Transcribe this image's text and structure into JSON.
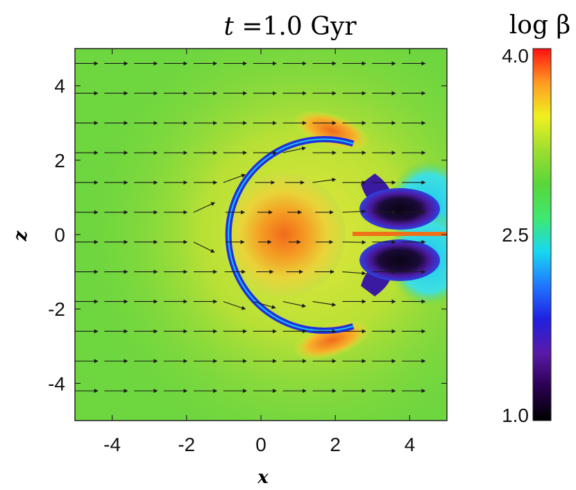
{
  "chart_data": {
    "type": "heatmap",
    "title_var": "t",
    "title_rest": " =1.0 Gyr",
    "xlabel": "x",
    "ylabel": "z",
    "xlim": [
      -5,
      5
    ],
    "ylim": [
      -5,
      5
    ],
    "xticks": [
      -4,
      -2,
      0,
      2,
      4
    ],
    "xtick_labels": [
      "-4",
      "-2",
      "0",
      "2",
      "4"
    ],
    "yticks": [
      4,
      2,
      0,
      -2,
      -4
    ],
    "ytick_labels": [
      "4",
      "2",
      "0",
      "-2",
      "-4"
    ],
    "colorbar": {
      "label": "log β",
      "min": 1.0,
      "max": 4.0,
      "ticks": [
        4.0,
        2.5,
        1.0
      ],
      "tick_labels": [
        "4.0",
        "2.5",
        "1.0"
      ],
      "colormap": [
        "#000000",
        "#2a0050",
        "#5a1aa8",
        "#2020e0",
        "#1f78ff",
        "#18d8f0",
        "#3fe870",
        "#59d63a",
        "#9ede30",
        "#f0f020",
        "#ff9a22",
        "#ff1010"
      ]
    },
    "features": {
      "background_log_beta": 2.7,
      "background_color": "#6ed63f",
      "bubble_center": [
        0.6,
        0.0
      ],
      "bubble_radius": 1.65,
      "bubble_core_color": "#f48a1e",
      "shell_color": "#2230dc",
      "wake_vortices": [
        [
          3.5,
          0.7
        ],
        [
          3.5,
          -0.7
        ]
      ],
      "wake_color": "#1a0a38",
      "vector_field": "uniform flow toward +x"
    }
  }
}
